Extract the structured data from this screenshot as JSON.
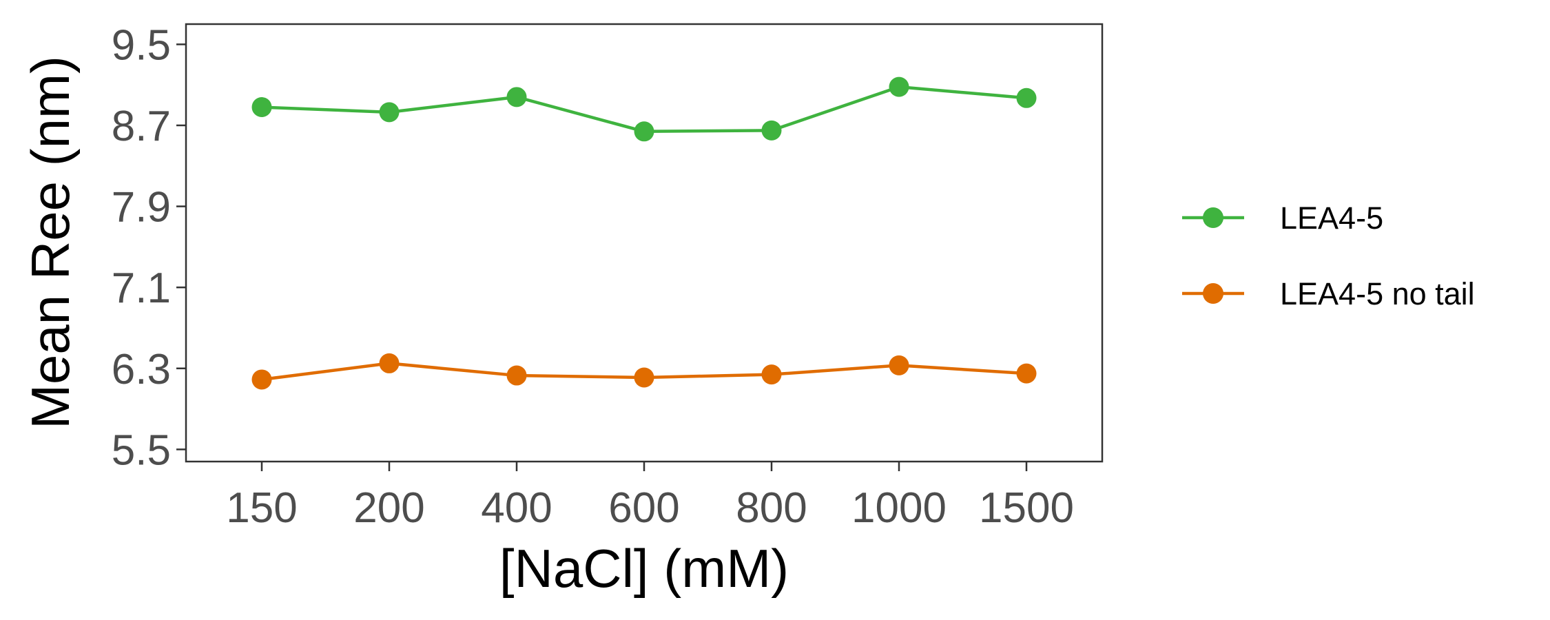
{
  "chart_data": {
    "type": "line",
    "title": "",
    "xlabel": "[NaCl] (mM)",
    "ylabel": "Mean Ree (nm)",
    "categories": [
      "150",
      "200",
      "400",
      "600",
      "800",
      "1000",
      "1500"
    ],
    "yticks": [
      "5.5",
      "6.3",
      "7.1",
      "7.9",
      "8.7",
      "9.5"
    ],
    "ylim": [
      5.38,
      9.7
    ],
    "grid": false,
    "legend_position": "right",
    "series": [
      {
        "name": "LEA4-5",
        "color": "#3fb33f",
        "values": [
          8.88,
          8.83,
          8.98,
          8.64,
          8.65,
          9.08,
          8.97
        ]
      },
      {
        "name": "LEA4-5 no tail",
        "color": "#e06c00",
        "values": [
          6.19,
          6.35,
          6.23,
          6.21,
          6.24,
          6.33,
          6.25
        ]
      }
    ]
  }
}
